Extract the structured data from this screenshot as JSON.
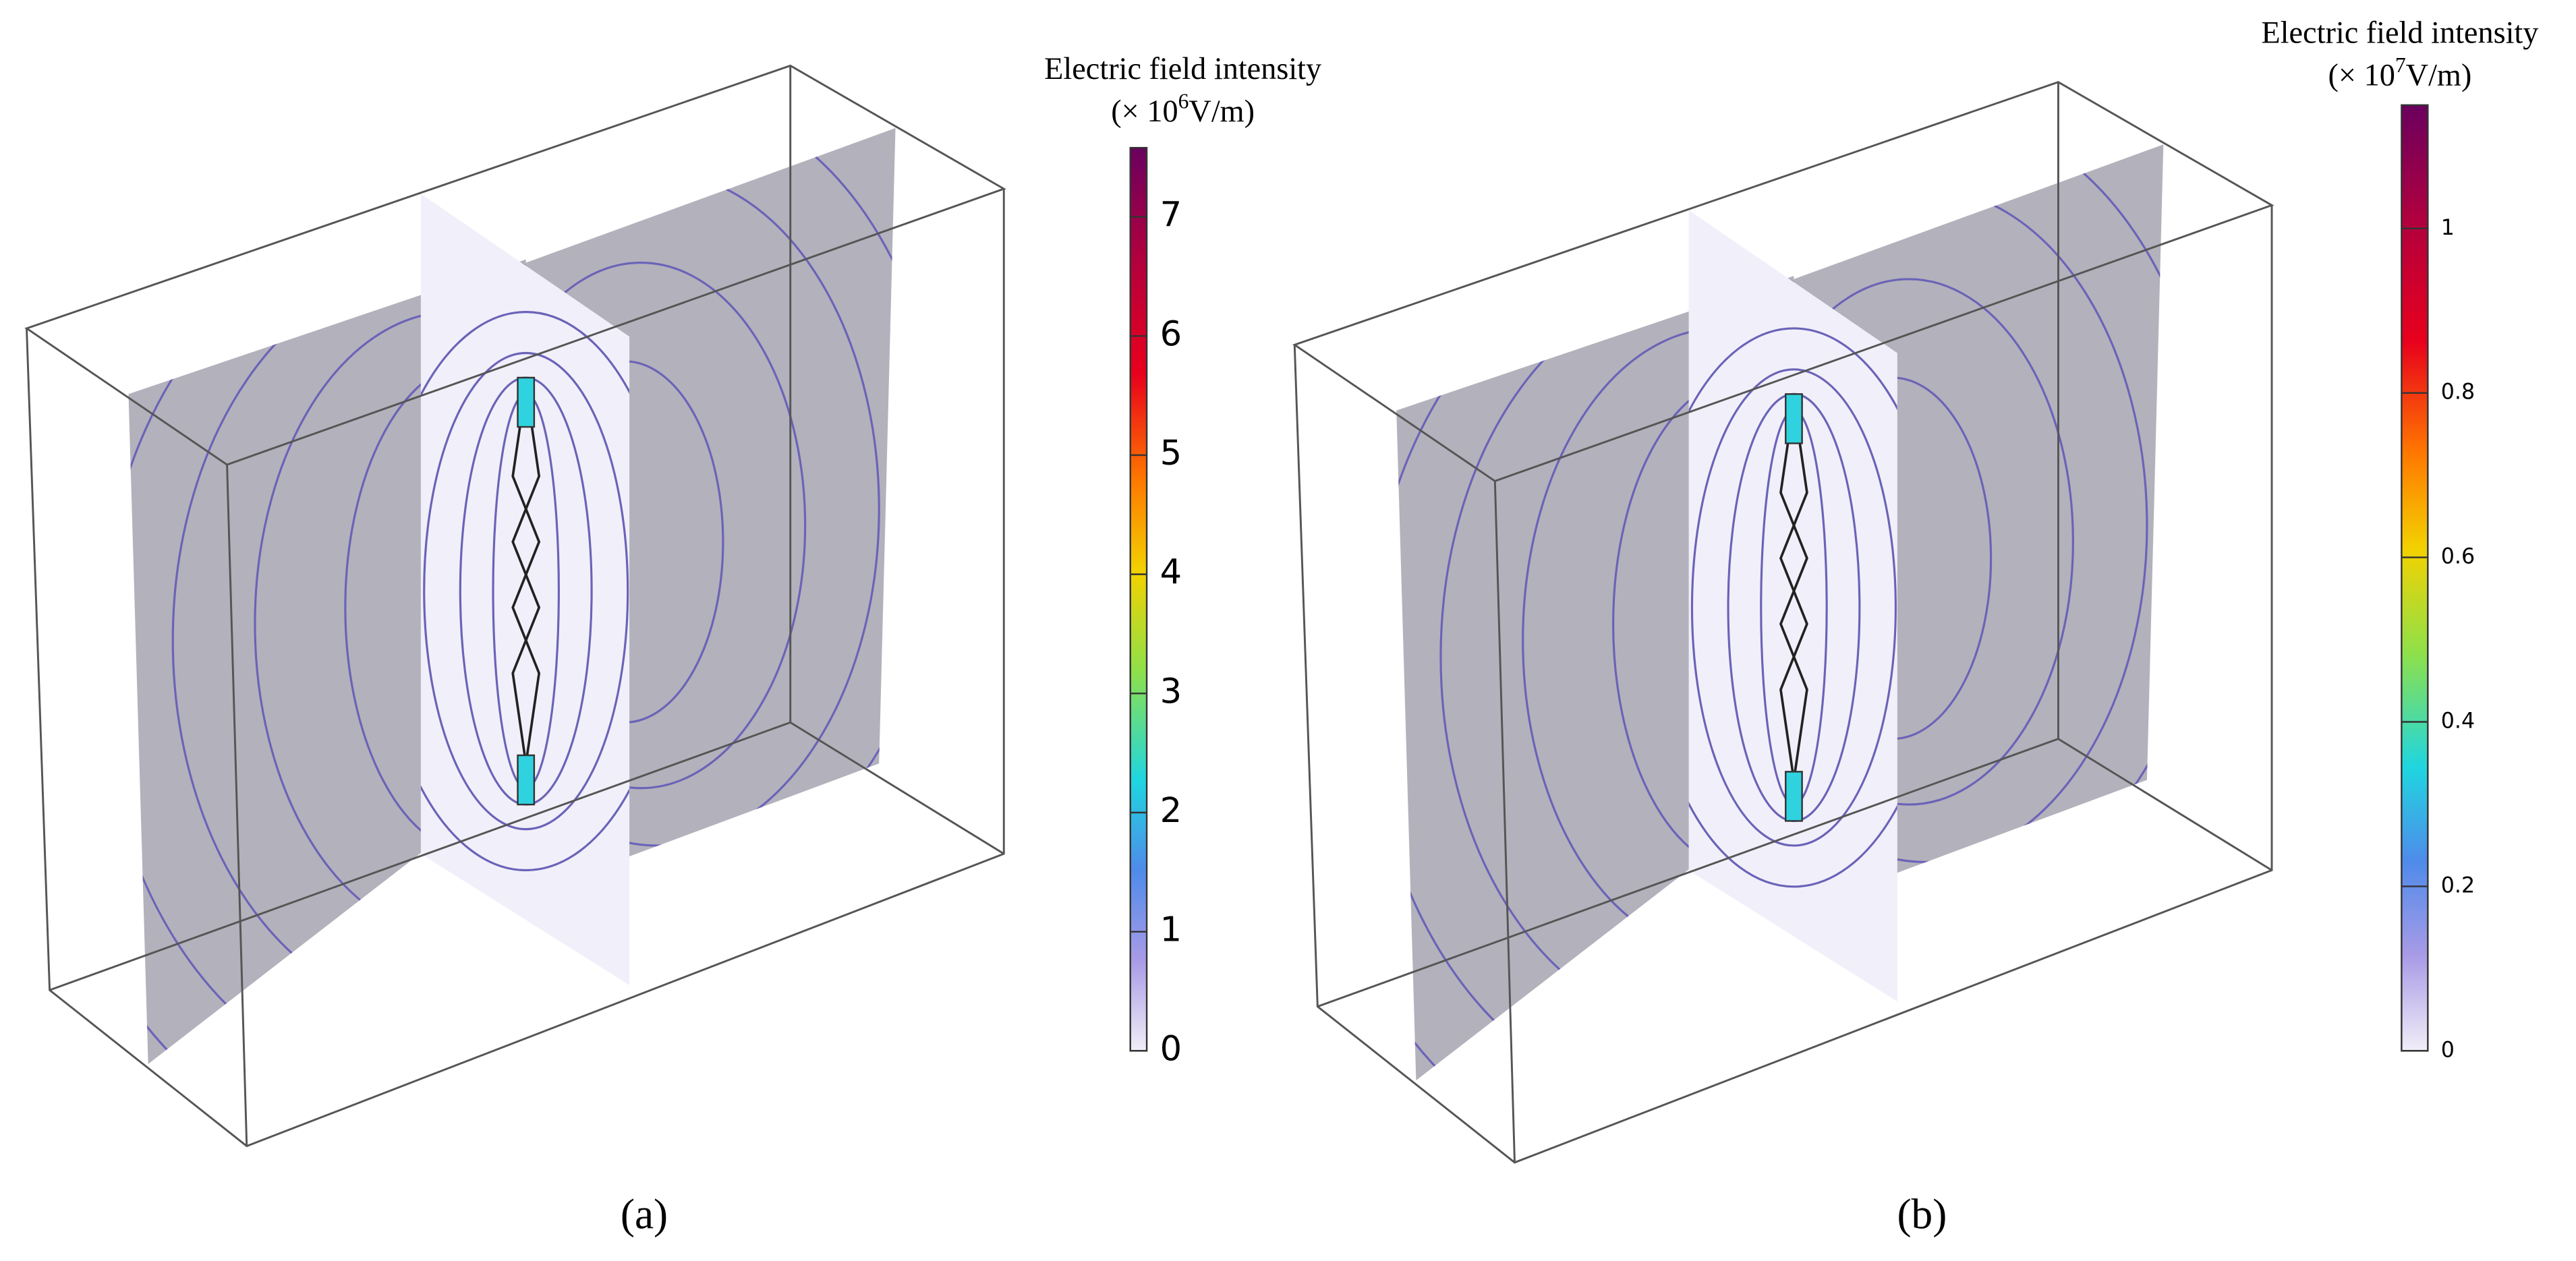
{
  "panels": [
    {
      "label": "(a)",
      "colorbar": {
        "title": "Electric field intensity",
        "unit_prefix": "(× 10",
        "exponent": "6",
        "unit_suffix": "V/m)",
        "range": [
          0,
          7.58
        ],
        "ticks": [
          0,
          1,
          2,
          3,
          4,
          5,
          6,
          7
        ]
      }
    },
    {
      "label": "(b)",
      "colorbar": {
        "title": "Electric field intensity",
        "unit_prefix": "(× 10",
        "exponent": "7",
        "unit_suffix": "V/m)",
        "range": [
          0,
          1.15
        ],
        "ticks": [
          0,
          0.2,
          0.4,
          0.6,
          0.8,
          1
        ]
      }
    }
  ]
}
